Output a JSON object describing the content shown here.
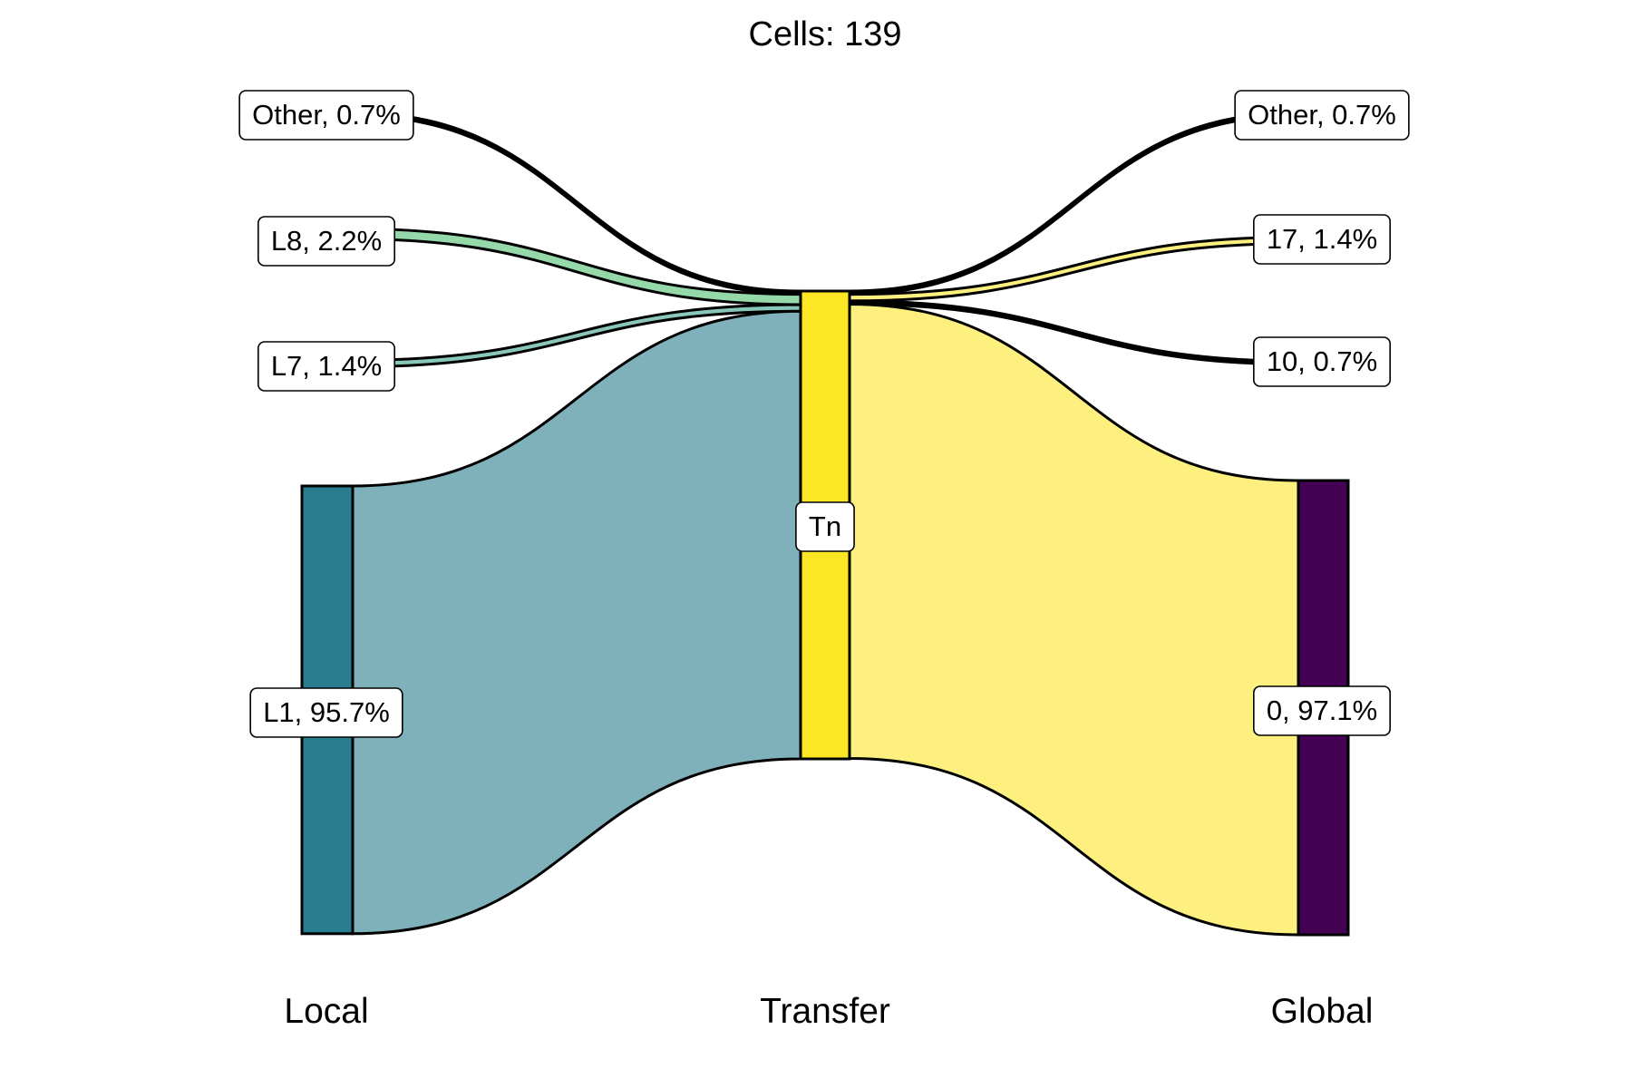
{
  "chart_data": {
    "type": "sankey",
    "title": "Cells:  139",
    "total_cells": 139,
    "axes": [
      "Local",
      "Transfer",
      "Global"
    ],
    "nodes": {
      "local": [
        {
          "id": "other_l",
          "label": "Other, 0.7%",
          "percent": 0.7,
          "color": "#000000"
        },
        {
          "id": "L8",
          "label": "L8, 2.2%",
          "percent": 2.2,
          "color": "#7ad151"
        },
        {
          "id": "L7",
          "label": "L7, 1.4%",
          "percent": 1.4,
          "color": "#22a884"
        },
        {
          "id": "L1",
          "label": "L1, 95.7%",
          "percent": 95.7,
          "color": "#287d8e"
        }
      ],
      "transfer": [
        {
          "id": "Tn",
          "label": "Tn",
          "percent": 100,
          "color": "#fde725"
        }
      ],
      "global": [
        {
          "id": "other_g",
          "label": "Other, 0.7%",
          "percent": 0.7,
          "color": "#000000"
        },
        {
          "id": "17",
          "label": "17, 1.4%",
          "percent": 1.4,
          "color": "#fde725"
        },
        {
          "id": "10",
          "label": "10, 0.7%",
          "percent": 0.7,
          "color": "#000000"
        },
        {
          "id": "0",
          "label": "0, 97.1%",
          "percent": 97.1,
          "color": "#440154"
        }
      ]
    },
    "flows_left": [
      {
        "from": "Other",
        "to": "Tn",
        "percent": 0.7,
        "color": "#000000"
      },
      {
        "from": "L8",
        "to": "Tn",
        "percent": 2.2,
        "color": "#95d8a9"
      },
      {
        "from": "L7",
        "to": "Tn",
        "percent": 1.4,
        "color": "#88c7b9"
      },
      {
        "from": "L1",
        "to": "Tn",
        "percent": 95.7,
        "color": "#7fb1bb"
      }
    ],
    "flows_right": [
      {
        "from": "Tn",
        "to": "Other",
        "percent": 0.7,
        "color": "#000000"
      },
      {
        "from": "Tn",
        "to": "17",
        "percent": 1.4,
        "color": "#fdf07f"
      },
      {
        "from": "Tn",
        "to": "10",
        "percent": 0.7,
        "color": "#000000"
      },
      {
        "from": "Tn",
        "to": "0",
        "percent": 97.1,
        "color": "#fdf07f"
      }
    ]
  }
}
